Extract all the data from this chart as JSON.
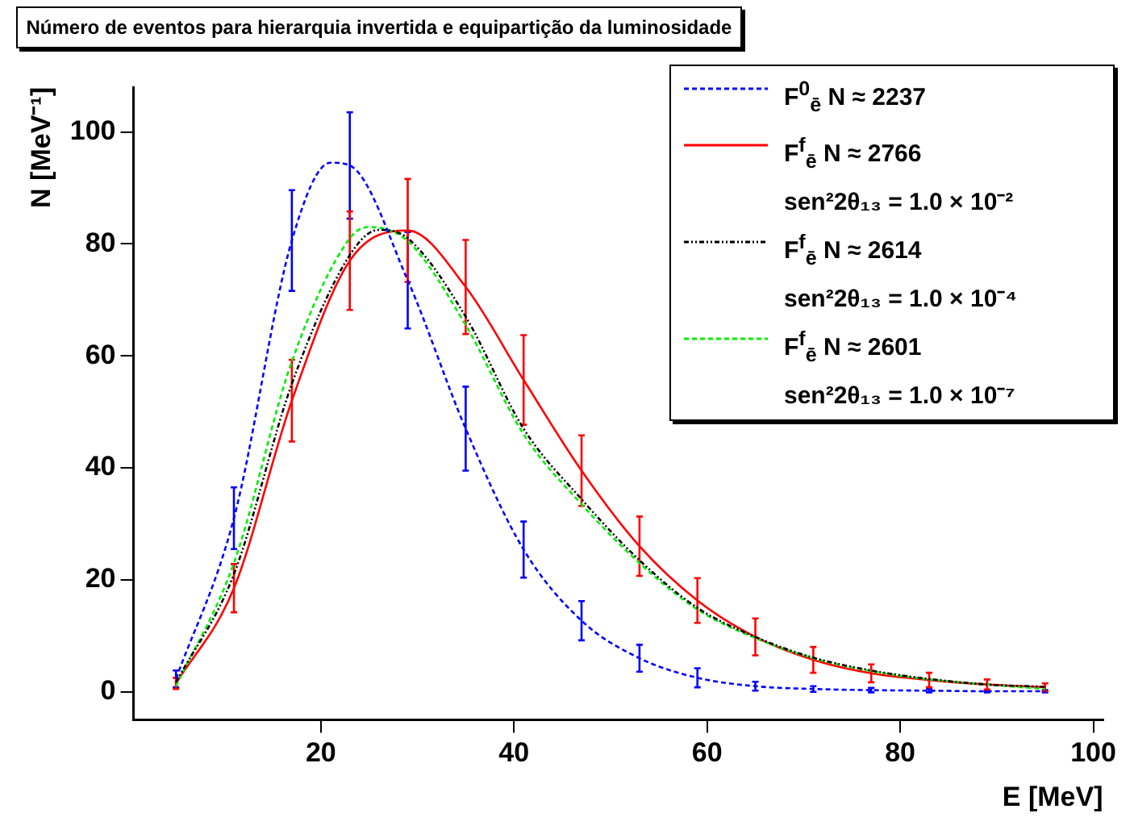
{
  "chart_data": {
    "type": "line",
    "title": "Número de eventos para hierarquia invertida e equipartição da luminosidade",
    "xlabel": "E [MeV]",
    "ylabel": "N [MeV⁻¹]",
    "xlim": [
      0.6,
      101
    ],
    "xticks": [
      20,
      40,
      60,
      80,
      100
    ],
    "ylim": [
      -5,
      108
    ],
    "yticks": [
      0,
      20,
      40,
      60,
      80,
      100
    ],
    "grid": false,
    "legend": "top right",
    "marker": "none",
    "series": [
      {
        "name": "F$^{0}$$_{ē}$  N ≈ 2237",
        "color": "#0000ff",
        "line_style": "dashed",
        "x": [
          5,
          11,
          17,
          21,
          23,
          29,
          35,
          41,
          47,
          53,
          59,
          65,
          71,
          77,
          83,
          89,
          95
        ],
        "values": [
          2.3,
          31,
          80.6,
          94.5,
          94,
          73.5,
          47,
          25.4,
          12.7,
          6,
          2.5,
          1,
          0.5,
          0.3,
          0.2,
          0.1,
          0.1
        ],
        "errors": [
          1.5,
          5.5,
          9,
          null,
          9.5,
          8.6,
          7.5,
          5,
          3.5,
          2.4,
          1.7,
          0.8,
          0.5,
          0.4,
          0.3,
          0.2,
          0.2
        ]
      },
      {
        "name": "F$^{f}$$_{ē}$  N ≈ 2766\nsen²2θ₁₃ = 1.0 × 10⁻²",
        "color": "#ff0000",
        "line_style": "solid",
        "x": [
          5,
          11,
          17,
          23,
          29,
          35,
          41,
          47,
          53,
          59,
          65,
          71,
          77,
          83,
          89,
          95
        ],
        "values": [
          1.5,
          18.5,
          52,
          77,
          82.4,
          72.3,
          55.7,
          39.5,
          26,
          16.3,
          9.8,
          5.7,
          3.3,
          2.1,
          1.3,
          0.8
        ],
        "errors": [
          1,
          4.3,
          7.3,
          8.8,
          9.2,
          8.4,
          8,
          6.3,
          5.3,
          4,
          3.3,
          2.3,
          1.6,
          1.3,
          0.9,
          0.7
        ]
      },
      {
        "name": "F$^{f}$$_{ē}$  N ≈ 2614\nsen²2θ₁₃ = 1.0 × 10⁻⁴",
        "color": "#000000",
        "line_style": "dotted",
        "x": [
          5,
          11,
          17,
          23,
          26,
          29,
          35,
          41,
          47,
          53,
          59,
          65,
          71,
          77,
          83,
          89,
          95
        ],
        "values": [
          1.7,
          21,
          55,
          78,
          82.5,
          81,
          67,
          47,
          34.4,
          23.5,
          15,
          9.8,
          6.1,
          3.8,
          2.3,
          1.3,
          0.9
        ]
      },
      {
        "name": "F$^{f}$$_{ē}$  N ≈ 2601\nsen²2θ₁₃ = 1.0 × 10⁻⁷",
        "color": "#00ee00",
        "line_style": "dashed",
        "x": [
          5,
          11,
          17,
          23,
          25,
          29,
          35,
          41,
          47,
          53,
          59,
          65,
          71,
          77,
          83,
          89,
          95
        ],
        "values": [
          1,
          23,
          59,
          81,
          83,
          80.5,
          65.5,
          46,
          33.5,
          23,
          14.7,
          9.6,
          6,
          3.7,
          2.2,
          1.3,
          0.5
        ]
      }
    ]
  }
}
